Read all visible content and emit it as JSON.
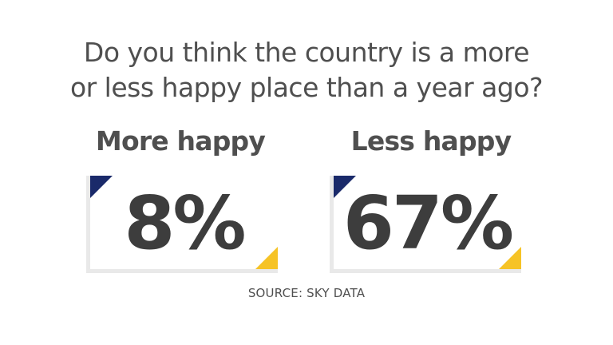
{
  "question": {
    "line1": "Do you think the country is a more",
    "line2": "or less happy place than a year ago?"
  },
  "source": "SOURCE: SKY DATA",
  "colors": {
    "corner_navy": "#1a2a6a",
    "corner_yellow": "#f6c326",
    "card_border": "#e9e9e9",
    "text": "#4f4f4f"
  },
  "chart_data": {
    "type": "table",
    "title": "Do you think the country is a more or less happy place than a year ago?",
    "categories": [
      "More happy",
      "Less happy"
    ],
    "values": [
      8,
      67
    ],
    "value_labels": [
      "8%",
      "67%"
    ],
    "unit": "%",
    "source": "SOURCE: SKY DATA"
  }
}
